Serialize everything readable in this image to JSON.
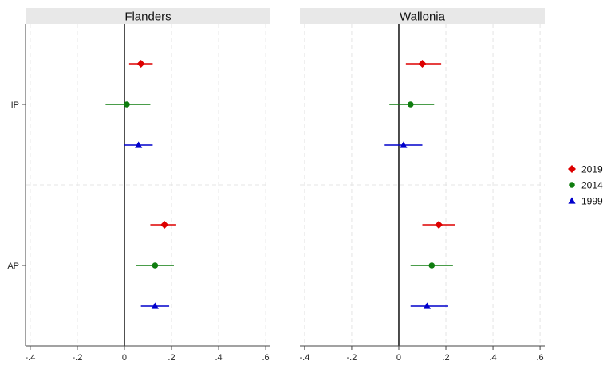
{
  "chart_data": {
    "type": "scatter",
    "subtype": "coefficient-plot",
    "panels": [
      {
        "title": "Flanders",
        "categories": [
          "IP",
          "AP"
        ],
        "series": [
          {
            "name": "2019",
            "color": "#dd0000",
            "marker": "diamond",
            "points": [
              {
                "category": "IP",
                "estimate": 0.07,
                "ci": [
                  0.02,
                  0.12
                ]
              },
              {
                "category": "AP",
                "estimate": 0.17,
                "ci": [
                  0.11,
                  0.22
                ]
              }
            ]
          },
          {
            "name": "2014",
            "color": "#0f7d0f",
            "marker": "circle",
            "points": [
              {
                "category": "IP",
                "estimate": 0.01,
                "ci": [
                  -0.08,
                  0.11
                ]
              },
              {
                "category": "AP",
                "estimate": 0.13,
                "ci": [
                  0.05,
                  0.21
                ]
              }
            ]
          },
          {
            "name": "1999",
            "color": "#0000cc",
            "marker": "triangle",
            "points": [
              {
                "category": "IP",
                "estimate": 0.06,
                "ci": [
                  0.0,
                  0.12
                ]
              },
              {
                "category": "AP",
                "estimate": 0.13,
                "ci": [
                  0.07,
                  0.19
                ]
              }
            ]
          }
        ]
      },
      {
        "title": "Wallonia",
        "categories": [
          "IP",
          "AP"
        ],
        "series": [
          {
            "name": "2019",
            "color": "#dd0000",
            "marker": "diamond",
            "points": [
              {
                "category": "IP",
                "estimate": 0.1,
                "ci": [
                  0.03,
                  0.18
                ]
              },
              {
                "category": "AP",
                "estimate": 0.17,
                "ci": [
                  0.1,
                  0.24
                ]
              }
            ]
          },
          {
            "name": "2014",
            "color": "#0f7d0f",
            "marker": "circle",
            "points": [
              {
                "category": "IP",
                "estimate": 0.05,
                "ci": [
                  -0.04,
                  0.15
                ]
              },
              {
                "category": "AP",
                "estimate": 0.14,
                "ci": [
                  0.05,
                  0.23
                ]
              }
            ]
          },
          {
            "name": "1999",
            "color": "#0000cc",
            "marker": "triangle",
            "points": [
              {
                "category": "IP",
                "estimate": 0.02,
                "ci": [
                  -0.06,
                  0.1
                ]
              },
              {
                "category": "AP",
                "estimate": 0.12,
                "ci": [
                  0.05,
                  0.21
                ]
              }
            ]
          }
        ]
      }
    ],
    "xlim": [
      -0.42,
      0.62
    ],
    "x_ticks": [
      -0.4,
      -0.2,
      0,
      0.2,
      0.4,
      0.6
    ],
    "x_tick_labels": [
      "-.4",
      "-.2",
      "0",
      ".2",
      ".4",
      ".6"
    ],
    "reference_line": 0,
    "grid": true,
    "legend": {
      "position": "right",
      "entries": [
        {
          "label": "2019",
          "color": "#dd0000",
          "marker": "diamond"
        },
        {
          "label": "2014",
          "color": "#0f7d0f",
          "marker": "circle"
        },
        {
          "label": "1999",
          "color": "#0000cc",
          "marker": "triangle"
        }
      ]
    }
  }
}
